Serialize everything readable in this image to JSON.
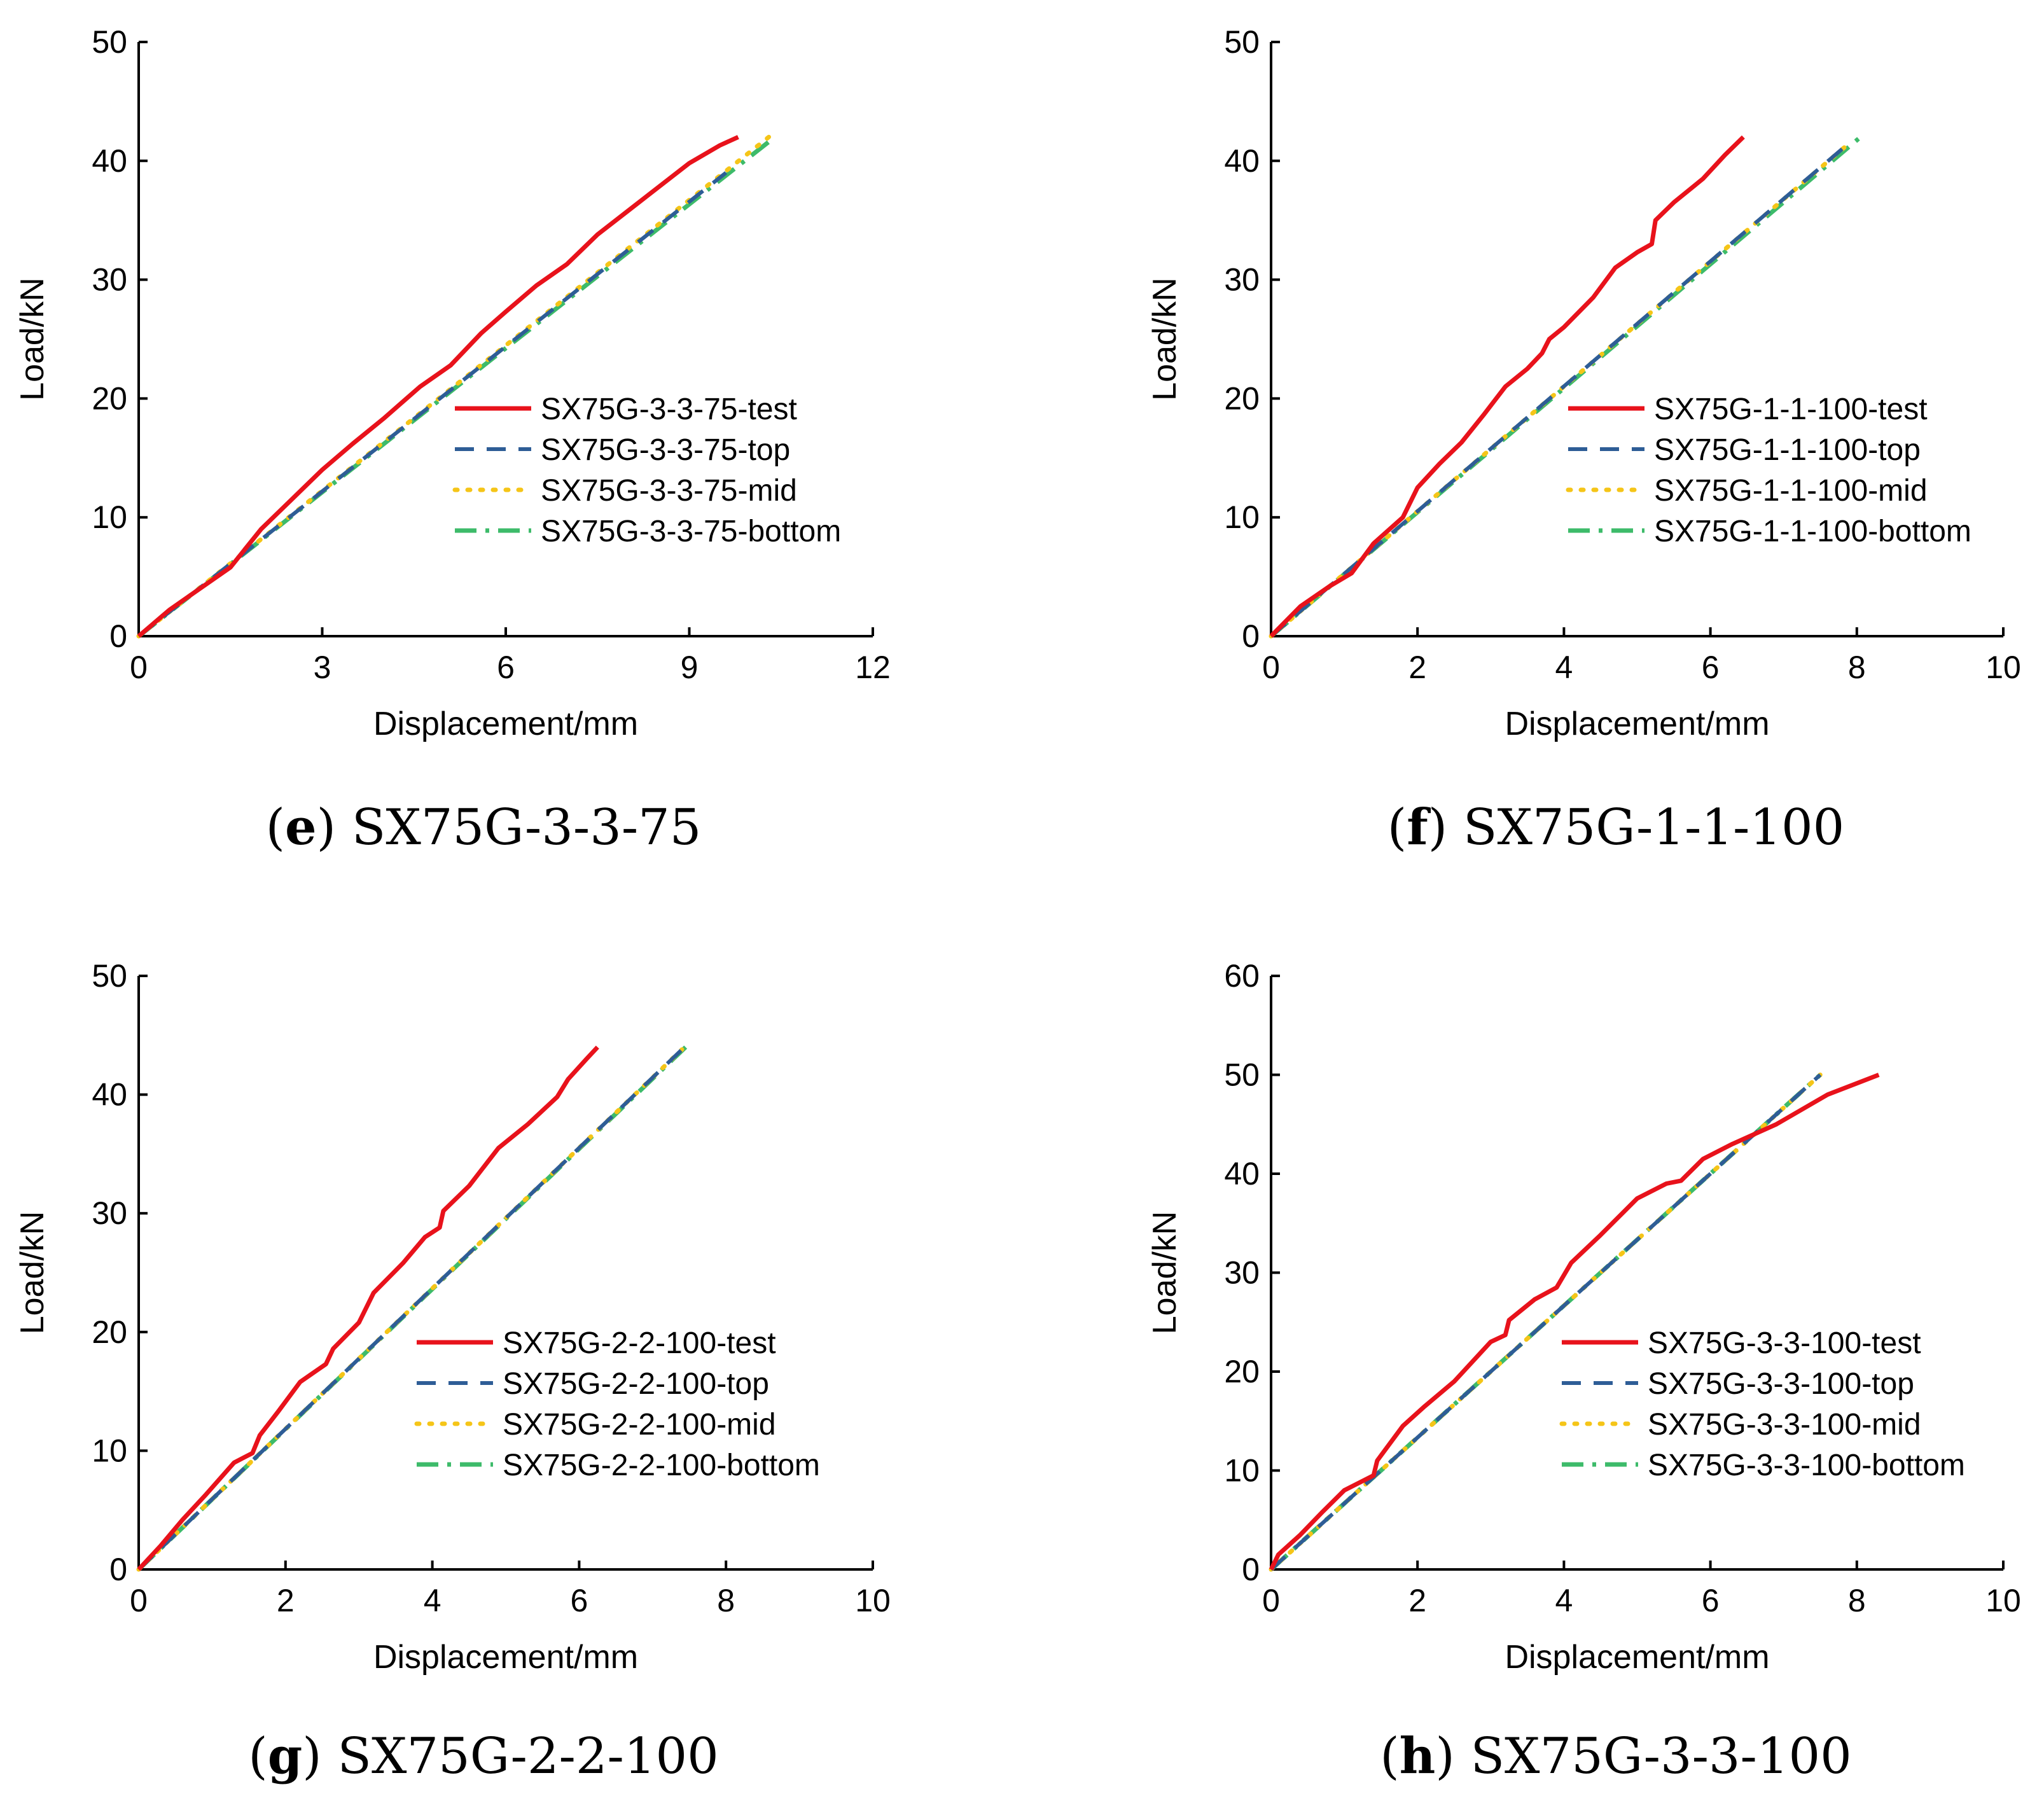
{
  "chart_data": [
    {
      "type": "line",
      "panel_label": "e",
      "caption_text": "SX75G-3-3-75",
      "xlabel": "Displacement/mm",
      "ylabel": "Load/kN",
      "xlim": [
        0,
        12
      ],
      "ylim": [
        0,
        50
      ],
      "xticks": [
        0,
        3,
        6,
        9,
        12
      ],
      "yticks": [
        0,
        10,
        20,
        30,
        40,
        50
      ],
      "xtick_labels": [
        "0",
        "3",
        "6",
        "9",
        "12"
      ],
      "ytick_labels": [
        "0",
        "10",
        "20",
        "30",
        "40",
        "50"
      ],
      "legend_position": "center-right",
      "grid": false,
      "series": [
        {
          "name": "SX75G-3-3-75-test",
          "style": "solid",
          "color": "#e8121b",
          "x": [
            0,
            0.5,
            1.0,
            1.5,
            2.0,
            2.5,
            3.0,
            3.5,
            4.0,
            4.6,
            5.1,
            5.6,
            6.0,
            6.5,
            7.0,
            7.5,
            8.0,
            8.5,
            9.0,
            9.5,
            9.8
          ],
          "y": [
            0,
            2.2,
            4.0,
            5.8,
            9.0,
            11.5,
            14.0,
            16.2,
            18.3,
            21.0,
            22.8,
            25.5,
            27.3,
            29.5,
            31.3,
            33.8,
            35.8,
            37.8,
            39.8,
            41.3,
            42
          ]
        },
        {
          "name": "SX75G-3-3-75-top",
          "style": "dashed",
          "color": "#2e5d96",
          "x": [
            0,
            9.6
          ],
          "y": [
            0,
            39.0
          ]
        },
        {
          "name": "SX75G-3-3-75-mid",
          "style": "dotted",
          "color": "#f5c518",
          "x": [
            0,
            10.3
          ],
          "y": [
            0,
            42
          ]
        },
        {
          "name": "SX75G-3-3-75-bottom",
          "style": "dashdot",
          "color": "#3dbb6a",
          "x": [
            0,
            10.4
          ],
          "y": [
            0,
            42
          ]
        }
      ]
    },
    {
      "type": "line",
      "panel_label": "f",
      "caption_text": "SX75G-1-1-100",
      "xlabel": "Displacement/mm",
      "ylabel": "Load/kN",
      "xlim": [
        0,
        10
      ],
      "ylim": [
        0,
        50
      ],
      "xticks": [
        0,
        2,
        4,
        6,
        8,
        10
      ],
      "yticks": [
        0,
        10,
        20,
        30,
        40,
        50
      ],
      "xtick_labels": [
        "0",
        "2",
        "4",
        "6",
        "8",
        "10"
      ],
      "ytick_labels": [
        "0",
        "10",
        "20",
        "30",
        "40",
        "50"
      ],
      "legend_position": "center-right",
      "grid": false,
      "series": [
        {
          "name": "SX75G-1-1-100-test",
          "style": "solid",
          "color": "#e8121b",
          "x": [
            0,
            0.4,
            0.8,
            1.1,
            1.4,
            1.8,
            2.0,
            2.3,
            2.6,
            2.9,
            3.2,
            3.5,
            3.7,
            3.8,
            4.0,
            4.4,
            4.7,
            5.0,
            5.2,
            5.25,
            5.5,
            5.9,
            6.2,
            6.45
          ],
          "y": [
            0,
            2.5,
            4.2,
            5.3,
            7.8,
            10.0,
            12.5,
            14.5,
            16.3,
            18.6,
            21.0,
            22.5,
            23.8,
            25.0,
            26.0,
            28.5,
            31.0,
            32.3,
            33.0,
            35.0,
            36.5,
            38.5,
            40.5,
            42
          ]
        },
        {
          "name": "SX75G-1-1-100-top",
          "style": "dashed",
          "color": "#2e5d96",
          "x": [
            0,
            7.8
          ],
          "y": [
            0,
            41.0
          ]
        },
        {
          "name": "SX75G-1-1-100-mid",
          "style": "dotted",
          "color": "#f5c518",
          "x": [
            0,
            7.9
          ],
          "y": [
            0,
            41.5
          ]
        },
        {
          "name": "SX75G-1-1-100-bottom",
          "style": "dashdot",
          "color": "#3dbb6a",
          "x": [
            0,
            8.05
          ],
          "y": [
            0,
            42
          ]
        }
      ]
    },
    {
      "type": "line",
      "panel_label": "g",
      "caption_text": "SX75G-2-2-100",
      "xlabel": "Displacement/mm",
      "ylabel": "Load/kN",
      "xlim": [
        0,
        10
      ],
      "ylim": [
        0,
        50
      ],
      "xticks": [
        0,
        2,
        4,
        6,
        8,
        10
      ],
      "yticks": [
        0,
        10,
        20,
        30,
        40,
        50
      ],
      "xtick_labels": [
        "0",
        "2",
        "4",
        "6",
        "8",
        "10"
      ],
      "ytick_labels": [
        "0",
        "10",
        "20",
        "30",
        "40",
        "50"
      ],
      "legend_position": "center-right",
      "grid": false,
      "series": [
        {
          "name": "SX75G-2-2-100-test",
          "style": "solid",
          "color": "#e8121b",
          "x": [
            0,
            0.3,
            0.6,
            0.9,
            1.3,
            1.55,
            1.65,
            1.9,
            2.2,
            2.55,
            2.65,
            3.0,
            3.2,
            3.6,
            3.9,
            4.1,
            4.15,
            4.5,
            4.9,
            5.3,
            5.7,
            5.85,
            6.1,
            6.25
          ],
          "y": [
            0,
            2.0,
            4.2,
            6.2,
            9.0,
            9.8,
            11.3,
            13.3,
            15.8,
            17.3,
            18.6,
            20.8,
            23.3,
            25.8,
            28.0,
            28.8,
            30.2,
            32.3,
            35.5,
            37.5,
            39.8,
            41.3,
            43.0,
            44
          ]
        },
        {
          "name": "SX75G-2-2-100-top",
          "style": "dashed",
          "color": "#2e5d96",
          "x": [
            0,
            7.4
          ],
          "y": [
            0,
            43.8
          ]
        },
        {
          "name": "SX75G-2-2-100-mid",
          "style": "dotted",
          "color": "#f5c518",
          "x": [
            0,
            7.4
          ],
          "y": [
            0,
            43.8
          ]
        },
        {
          "name": "SX75G-2-2-100-bottom",
          "style": "dashdot",
          "color": "#3dbb6a",
          "x": [
            0,
            7.45
          ],
          "y": [
            0,
            44
          ]
        }
      ]
    },
    {
      "type": "line",
      "panel_label": "h",
      "caption_text": "SX75G-3-3-100",
      "xlabel": "Displacement/mm",
      "ylabel": "Load/kN",
      "xlim": [
        0,
        10
      ],
      "ylim": [
        0,
        60
      ],
      "xticks": [
        0,
        2,
        4,
        6,
        8,
        10
      ],
      "yticks": [
        0,
        10,
        20,
        30,
        40,
        50,
        60
      ],
      "xtick_labels": [
        "0",
        "2",
        "4",
        "6",
        "8",
        "10"
      ],
      "ytick_labels": [
        "0",
        "10",
        "20",
        "30",
        "40",
        "50",
        "60"
      ],
      "legend_position": "center-right",
      "grid": false,
      "series": [
        {
          "name": "SX75G-3-3-100-test",
          "style": "solid",
          "color": "#e8121b",
          "x": [
            0,
            0.1,
            0.4,
            0.7,
            1.0,
            1.4,
            1.45,
            1.8,
            2.1,
            2.5,
            3.0,
            3.2,
            3.25,
            3.6,
            3.9,
            4.1,
            4.5,
            5.0,
            5.4,
            5.6,
            5.9,
            6.3,
            6.9,
            7.6,
            8.3
          ],
          "y": [
            0,
            1.5,
            3.5,
            5.8,
            8.0,
            9.5,
            11.0,
            14.5,
            16.5,
            19.0,
            23.0,
            23.7,
            25.2,
            27.3,
            28.5,
            31.0,
            33.8,
            37.5,
            39.0,
            39.3,
            41.5,
            43.0,
            45.0,
            48.0,
            50
          ]
        },
        {
          "name": "SX75G-3-3-100-top",
          "style": "dashed",
          "color": "#2e5d96",
          "x": [
            0,
            7.5
          ],
          "y": [
            0,
            50
          ]
        },
        {
          "name": "SX75G-3-3-100-mid",
          "style": "dotted",
          "color": "#f5c518",
          "x": [
            0,
            7.5
          ],
          "y": [
            0,
            50
          ]
        },
        {
          "name": "SX75G-3-3-100-bottom",
          "style": "dashdot",
          "color": "#3dbb6a",
          "x": [
            0,
            7.5
          ],
          "y": [
            0,
            50
          ]
        }
      ]
    }
  ]
}
